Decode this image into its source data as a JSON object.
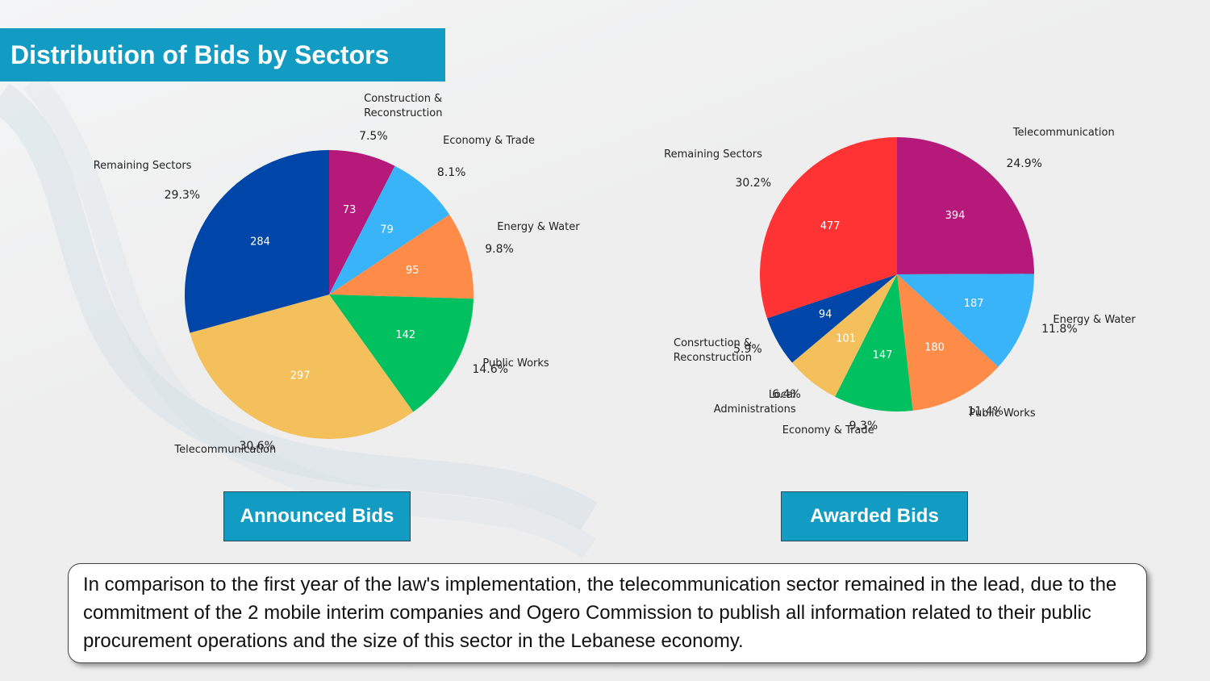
{
  "header": {
    "title": "Distribution of Bids by Sectors"
  },
  "caption": "In comparison to the first year of the law's implementation, the telecommunication sector remained in the lead, due to the commitment of the 2 mobile interim companies and Ogero Commission to publish all information related to their public procurement operations and the size of this sector in the Lebanese economy.",
  "chart_data": [
    {
      "type": "pie",
      "title": "Announced Bids",
      "categories": [
        "Construction & Reconstruction",
        "Economy & Trade",
        "Energy & Water",
        "Public Works",
        "Telecommunication",
        "Remaining Sectors"
      ],
      "values": [
        73,
        79,
        95,
        142,
        297,
        284
      ],
      "percent_labels": [
        "7.5%",
        "8.1%",
        "9.8%",
        "14.6%",
        "30.6%",
        "29.3%"
      ],
      "colors": [
        "#b5197a",
        "#3ab4f9",
        "#fe8c48",
        "#00c060",
        "#f4c05c",
        "#0045a8"
      ]
    },
    {
      "type": "pie",
      "title": "Awarded Bids",
      "categories": [
        "Telecommunication",
        "Energy & Water",
        "Public Works",
        "Economy & Trade",
        "Local Administrations",
        "Consrtuction & Reconstruction",
        "Remaining Sectors"
      ],
      "values": [
        394,
        187,
        180,
        147,
        101,
        94,
        477
      ],
      "percent_labels": [
        "24.9%",
        "11.8%",
        "11.4%",
        "9.3%",
        "6.4%",
        "5.9%",
        "30.2%"
      ],
      "colors": [
        "#b5197a",
        "#3ab4f9",
        "#fe8c48",
        "#00c060",
        "#f4c05c",
        "#0045a8",
        "#ff3333"
      ]
    }
  ]
}
